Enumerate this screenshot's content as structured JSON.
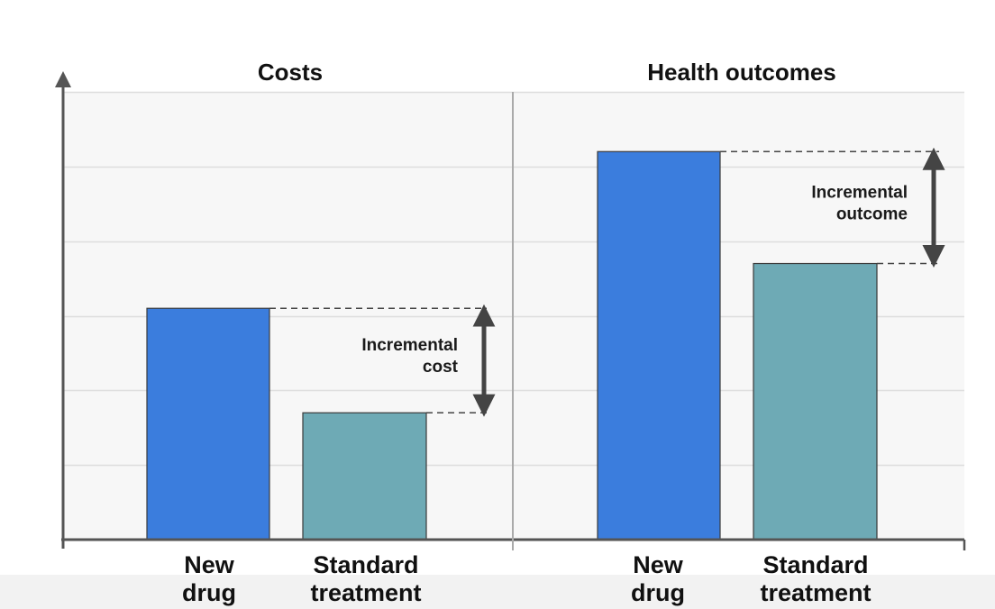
{
  "chart_data": [
    {
      "type": "bar",
      "title": "Costs",
      "categories": [
        "New drug",
        "Standard treatment"
      ],
      "category_lines": [
        [
          "New",
          "drug"
        ],
        [
          "Standard",
          "treatment"
        ]
      ],
      "values": [
        3.1,
        1.7
      ],
      "ylim": [
        0,
        6
      ],
      "grid": true,
      "annotation": {
        "lines": [
          "Incremental",
          "cost"
        ]
      }
    },
    {
      "type": "bar",
      "title": "Health outcomes",
      "categories": [
        "New drug",
        "Standard treatment"
      ],
      "category_lines": [
        [
          "New",
          "drug"
        ],
        [
          "Standard",
          "treatment"
        ]
      ],
      "values": [
        5.2,
        3.7
      ],
      "ylim": [
        0,
        6
      ],
      "grid": true,
      "annotation": {
        "lines": [
          "Incremental",
          "outcome"
        ]
      }
    }
  ],
  "colors": {
    "new_drug": "#3b7ddd",
    "standard_treatment": "#6eaab5",
    "axis": "#555555",
    "grid": "#dedede",
    "plot_background": "#f7f7f7",
    "arrow": "#444444"
  }
}
